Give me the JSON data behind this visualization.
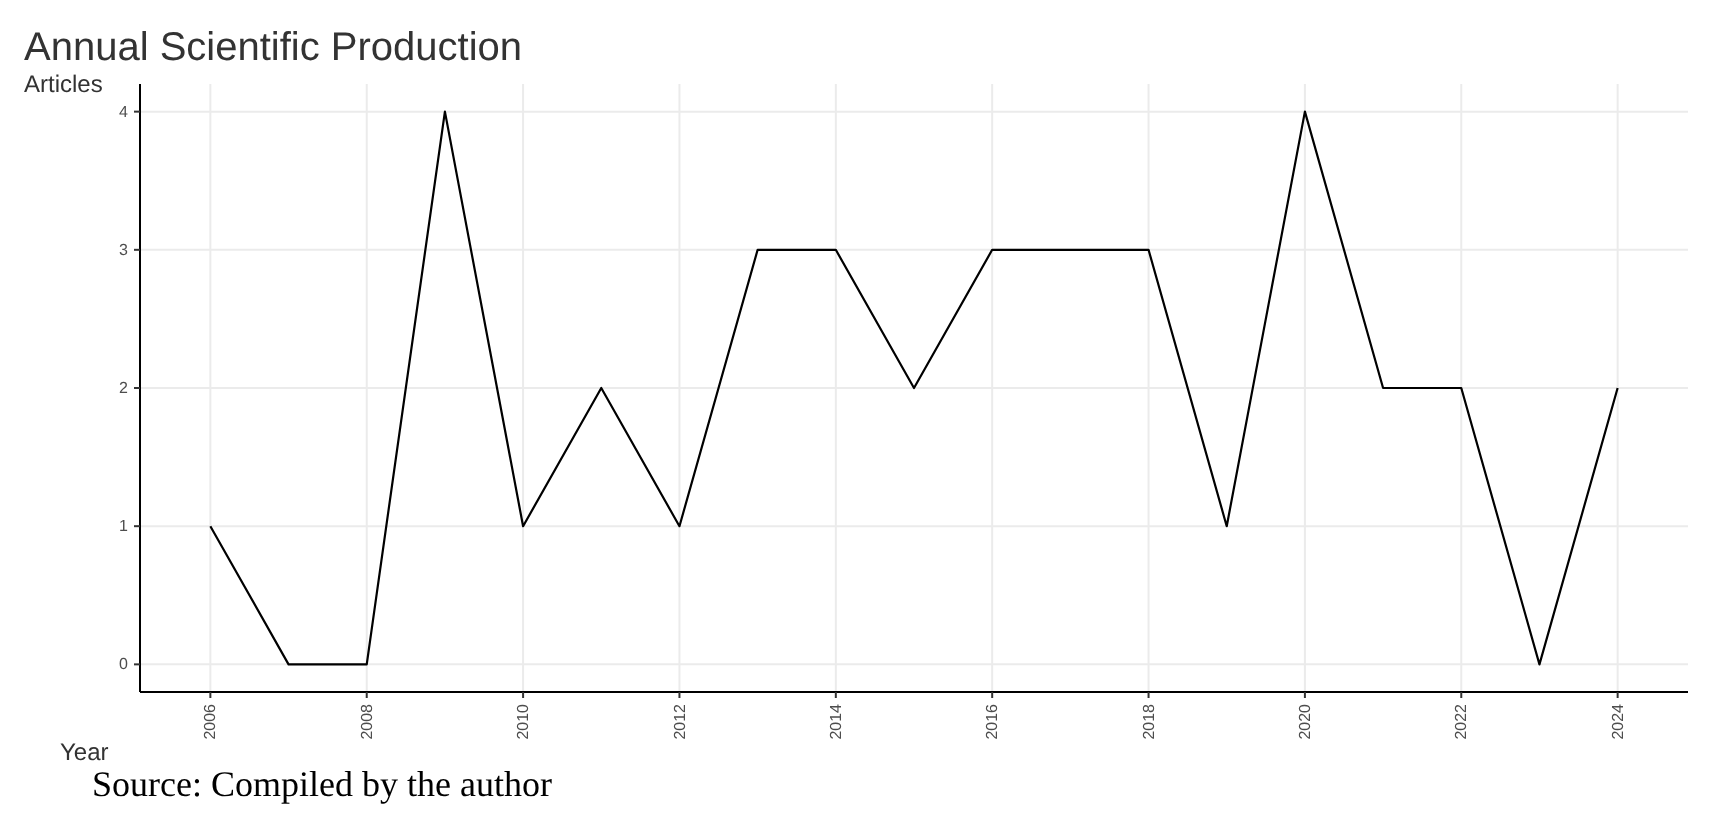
{
  "chart_data": {
    "type": "line",
    "title": "Annual Scientific Production",
    "xlabel": "Year",
    "ylabel": "Articles",
    "x": [
      2006,
      2007,
      2008,
      2009,
      2010,
      2011,
      2012,
      2013,
      2014,
      2015,
      2016,
      2017,
      2018,
      2019,
      2020,
      2021,
      2022,
      2023,
      2024
    ],
    "series": [
      {
        "color": "#000000",
        "values": [
          1,
          0,
          0,
          4,
          1,
          2,
          1,
          3,
          3,
          2,
          3,
          3,
          3,
          1,
          4,
          2,
          2,
          0,
          2
        ]
      }
    ],
    "xlim": [
      2005.1,
      2024.9
    ],
    "xticks": [
      2006,
      2008,
      2010,
      2012,
      2014,
      2016,
      2018,
      2020,
      2022,
      2024
    ],
    "ylim": [
      -0.2,
      4.2
    ],
    "yticks": [
      0,
      1,
      2,
      3,
      4
    ],
    "grid": true,
    "marker": "none",
    "line_style": "solid",
    "annotations": [
      "Source: Compiled by the author"
    ]
  }
}
